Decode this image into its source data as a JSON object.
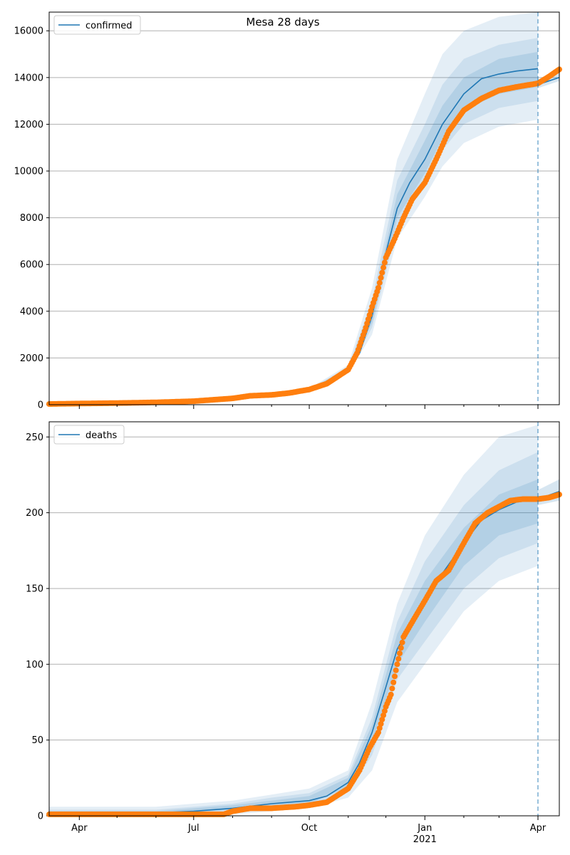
{
  "figure": {
    "title": "Mesa 28 days"
  },
  "x_axis": {
    "start": "2020-03-08",
    "end": "2021-04-18",
    "ticks": [
      {
        "date": "2020-04-01",
        "label": "Apr",
        "sublabel": ""
      },
      {
        "date": "2020-07-01",
        "label": "Jul",
        "sublabel": ""
      },
      {
        "date": "2020-10-01",
        "label": "Oct",
        "sublabel": ""
      },
      {
        "date": "2021-01-01",
        "label": "Jan",
        "sublabel": "2021"
      },
      {
        "date": "2021-04-01",
        "label": "Apr",
        "sublabel": ""
      }
    ],
    "minor_ticks": [
      "2020-05-01",
      "2020-06-01",
      "2020-08-01",
      "2020-09-01",
      "2020-11-01",
      "2020-12-01",
      "2021-02-01",
      "2021-03-01"
    ]
  },
  "forecast_date": "2021-04-01",
  "colors": {
    "model": "#1f77b4",
    "observed": "#ff7f0e",
    "band": "#1f77b4",
    "grid": "#b0b0b0"
  },
  "chart_data": [
    {
      "type": "line",
      "legend": "confirmed",
      "legend_position": "top-left",
      "grid": true,
      "ylim": [
        0,
        16800
      ],
      "y_ticks": [
        0,
        2000,
        4000,
        6000,
        8000,
        10000,
        12000,
        14000,
        16000
      ],
      "model_line": [
        [
          "2020-03-08",
          30
        ],
        [
          "2020-04-01",
          50
        ],
        [
          "2020-05-01",
          70
        ],
        [
          "2020-06-01",
          100
        ],
        [
          "2020-07-01",
          180
        ],
        [
          "2020-08-01",
          330
        ],
        [
          "2020-09-01",
          460
        ],
        [
          "2020-10-01",
          650
        ],
        [
          "2020-10-15",
          900
        ],
        [
          "2020-11-01",
          1500
        ],
        [
          "2020-11-10",
          2200
        ],
        [
          "2020-11-20",
          3800
        ],
        [
          "2020-12-01",
          6500
        ],
        [
          "2020-12-10",
          8400
        ],
        [
          "2020-12-20",
          9500
        ],
        [
          "2021-01-01",
          10500
        ],
        [
          "2021-01-15",
          12000
        ],
        [
          "2021-02-01",
          13300
        ],
        [
          "2021-02-15",
          13950
        ],
        [
          "2021-03-01",
          14150
        ],
        [
          "2021-03-15",
          14280
        ],
        [
          "2021-04-01",
          14380
        ]
      ],
      "bands": [
        {
          "level": "outer",
          "upper": [
            [
              "2020-10-01",
              700
            ],
            [
              "2020-11-01",
              1700
            ],
            [
              "2020-11-20",
              5000
            ],
            [
              "2020-12-10",
              10500
            ],
            [
              "2021-01-01",
              13300
            ],
            [
              "2021-01-15",
              15000
            ],
            [
              "2021-02-01",
              16000
            ],
            [
              "2021-03-01",
              16600
            ],
            [
              "2021-04-01",
              16800
            ]
          ],
          "lower": [
            [
              "2020-10-01",
              600
            ],
            [
              "2020-11-01",
              1350
            ],
            [
              "2020-11-20",
              3000
            ],
            [
              "2020-12-10",
              7100
            ],
            [
              "2021-01-01",
              8900
            ],
            [
              "2021-01-15",
              10200
            ],
            [
              "2021-02-01",
              11200
            ],
            [
              "2021-03-01",
              11900
            ],
            [
              "2021-04-01",
              12200
            ]
          ]
        },
        {
          "level": "middle",
          "upper": [
            [
              "2020-10-01",
              680
            ],
            [
              "2020-11-01",
              1600
            ],
            [
              "2020-11-20",
              4500
            ],
            [
              "2020-12-10",
              9600
            ],
            [
              "2021-01-01",
              12000
            ],
            [
              "2021-01-15",
              13700
            ],
            [
              "2021-02-01",
              14800
            ],
            [
              "2021-03-01",
              15400
            ],
            [
              "2021-04-01",
              15700
            ]
          ],
          "lower": [
            [
              "2020-10-01",
              620
            ],
            [
              "2020-11-01",
              1420
            ],
            [
              "2020-11-20",
              3300
            ],
            [
              "2020-12-10",
              7600
            ],
            [
              "2021-01-01",
              9500
            ],
            [
              "2021-01-15",
              10900
            ],
            [
              "2021-02-01",
              12000
            ],
            [
              "2021-03-01",
              12700
            ],
            [
              "2021-04-01",
              13000
            ]
          ]
        },
        {
          "level": "inner",
          "upper": [
            [
              "2020-10-01",
              660
            ],
            [
              "2020-11-01",
              1550
            ],
            [
              "2020-11-20",
              4200
            ],
            [
              "2020-12-10",
              9000
            ],
            [
              "2021-01-01",
              11300
            ],
            [
              "2021-01-15",
              12800
            ],
            [
              "2021-02-01",
              14000
            ],
            [
              "2021-03-01",
              14800
            ],
            [
              "2021-04-01",
              15100
            ]
          ],
          "lower": [
            [
              "2020-10-01",
              640
            ],
            [
              "2020-11-01",
              1460
            ],
            [
              "2020-11-20",
              3500
            ],
            [
              "2020-12-10",
              8000
            ],
            [
              "2021-01-01",
              9900
            ],
            [
              "2021-01-15",
              11400
            ],
            [
              "2021-02-01",
              12600
            ],
            [
              "2021-03-01",
              13300
            ],
            [
              "2021-04-01",
              13600
            ]
          ]
        }
      ],
      "post_line": [
        [
          "2021-04-01",
          13700
        ],
        [
          "2021-04-18",
          14000
        ]
      ],
      "post_band": {
        "upper": [
          [
            "2021-04-01",
            13900
          ],
          [
            "2021-04-18",
            14200
          ]
        ],
        "lower": [
          [
            "2021-04-01",
            13550
          ],
          [
            "2021-04-18",
            13850
          ]
        ]
      },
      "observed": [
        [
          "2020-03-08",
          30
        ],
        [
          "2020-04-01",
          50
        ],
        [
          "2020-05-01",
          70
        ],
        [
          "2020-06-01",
          100
        ],
        [
          "2020-07-01",
          150
        ],
        [
          "2020-08-01",
          270
        ],
        [
          "2020-08-15",
          380
        ],
        [
          "2020-09-01",
          420
        ],
        [
          "2020-09-15",
          500
        ],
        [
          "2020-10-01",
          650
        ],
        [
          "2020-10-15",
          900
        ],
        [
          "2020-11-01",
          1500
        ],
        [
          "2020-11-08",
          2200
        ],
        [
          "2020-11-15",
          3300
        ],
        [
          "2020-11-20",
          4200
        ],
        [
          "2020-11-25",
          5000
        ],
        [
          "2020-12-01",
          6300
        ],
        [
          "2020-12-08",
          7100
        ],
        [
          "2020-12-15",
          8000
        ],
        [
          "2020-12-22",
          8800
        ],
        [
          "2021-01-01",
          9500
        ],
        [
          "2021-01-10",
          10500
        ],
        [
          "2021-01-20",
          11700
        ],
        [
          "2021-02-01",
          12600
        ],
        [
          "2021-02-15",
          13100
        ],
        [
          "2021-03-01",
          13450
        ],
        [
          "2021-03-15",
          13600
        ],
        [
          "2021-04-01",
          13750
        ],
        [
          "2021-04-10",
          14050
        ],
        [
          "2021-04-18",
          14350
        ]
      ]
    },
    {
      "type": "line",
      "legend": "deaths",
      "legend_position": "top-left",
      "grid": true,
      "ylim": [
        0,
        260
      ],
      "y_ticks": [
        0,
        50,
        100,
        150,
        200,
        250
      ],
      "model_line": [
        [
          "2020-03-08",
          1
        ],
        [
          "2020-04-01",
          1
        ],
        [
          "2020-05-01",
          2
        ],
        [
          "2020-06-01",
          2
        ],
        [
          "2020-07-01",
          3
        ],
        [
          "2020-08-01",
          5
        ],
        [
          "2020-09-01",
          8
        ],
        [
          "2020-10-01",
          10
        ],
        [
          "2020-10-15",
          13
        ],
        [
          "2020-11-01",
          22
        ],
        [
          "2020-11-10",
          35
        ],
        [
          "2020-11-20",
          55
        ],
        [
          "2020-12-01",
          85
        ],
        [
          "2020-12-10",
          110
        ],
        [
          "2020-12-20",
          125
        ],
        [
          "2021-01-01",
          140
        ],
        [
          "2021-01-15",
          160
        ],
        [
          "2021-02-01",
          180
        ],
        [
          "2021-02-15",
          195
        ],
        [
          "2021-03-01",
          202
        ],
        [
          "2021-03-15",
          207
        ],
        [
          "2021-04-01",
          209
        ]
      ],
      "bands": [
        {
          "level": "outer",
          "upper": [
            [
              "2020-03-08",
              6
            ],
            [
              "2020-06-01",
              6
            ],
            [
              "2020-08-01",
              10
            ],
            [
              "2020-09-01",
              14
            ],
            [
              "2020-10-01",
              18
            ],
            [
              "2020-11-01",
              30
            ],
            [
              "2020-11-20",
              75
            ],
            [
              "2020-12-10",
              140
            ],
            [
              "2021-01-01",
              185
            ],
            [
              "2021-02-01",
              225
            ],
            [
              "2021-03-01",
              250
            ],
            [
              "2021-04-01",
              258
            ]
          ],
          "lower": [
            [
              "2020-03-08",
              0
            ],
            [
              "2020-06-01",
              0
            ],
            [
              "2020-08-01",
              1
            ],
            [
              "2020-09-01",
              3
            ],
            [
              "2020-10-01",
              5
            ],
            [
              "2020-11-01",
              12
            ],
            [
              "2020-11-20",
              30
            ],
            [
              "2020-12-10",
              75
            ],
            [
              "2021-01-01",
              100
            ],
            [
              "2021-02-01",
              135
            ],
            [
              "2021-03-01",
              155
            ],
            [
              "2021-04-01",
              165
            ]
          ]
        },
        {
          "level": "middle",
          "upper": [
            [
              "2020-03-08",
              4
            ],
            [
              "2020-06-01",
              4
            ],
            [
              "2020-08-01",
              8
            ],
            [
              "2020-09-01",
              12
            ],
            [
              "2020-10-01",
              15
            ],
            [
              "2020-11-01",
              27
            ],
            [
              "2020-11-20",
              65
            ],
            [
              "2020-12-10",
              128
            ],
            [
              "2021-01-01",
              168
            ],
            [
              "2021-02-01",
              205
            ],
            [
              "2021-03-01",
              228
            ],
            [
              "2021-04-01",
              240
            ]
          ],
          "lower": [
            [
              "2020-03-08",
              0
            ],
            [
              "2020-06-01",
              1
            ],
            [
              "2020-08-01",
              3
            ],
            [
              "2020-09-01",
              5
            ],
            [
              "2020-10-01",
              7
            ],
            [
              "2020-11-01",
              16
            ],
            [
              "2020-11-20",
              40
            ],
            [
              "2020-12-10",
              90
            ],
            [
              "2021-01-01",
              115
            ],
            [
              "2021-02-01",
              150
            ],
            [
              "2021-03-01",
              170
            ],
            [
              "2021-04-01",
              180
            ]
          ]
        },
        {
          "level": "inner",
          "upper": [
            [
              "2020-03-08",
              3
            ],
            [
              "2020-06-01",
              3
            ],
            [
              "2020-08-01",
              7
            ],
            [
              "2020-09-01",
              10
            ],
            [
              "2020-10-01",
              13
            ],
            [
              "2020-11-01",
              25
            ],
            [
              "2020-11-20",
              60
            ],
            [
              "2020-12-10",
              120
            ],
            [
              "2021-01-01",
              155
            ],
            [
              "2021-02-01",
              190
            ],
            [
              "2021-03-01",
              212
            ],
            [
              "2021-04-01",
              222
            ]
          ],
          "lower": [
            [
              "2020-03-08",
              0
            ],
            [
              "2020-06-01",
              1
            ],
            [
              "2020-08-01",
              4
            ],
            [
              "2020-09-01",
              6
            ],
            [
              "2020-10-01",
              8
            ],
            [
              "2020-11-01",
              19
            ],
            [
              "2020-11-20",
              48
            ],
            [
              "2020-12-10",
              100
            ],
            [
              "2021-01-01",
              128
            ],
            [
              "2021-02-01",
              165
            ],
            [
              "2021-03-01",
              185
            ],
            [
              "2021-04-01",
              193
            ]
          ]
        }
      ],
      "post_line": [
        [
          "2021-04-01",
          209
        ],
        [
          "2021-04-18",
          214
        ]
      ],
      "post_band": {
        "upper": [
          [
            "2021-04-01",
            215
          ],
          [
            "2021-04-18",
            222
          ]
        ],
        "lower": [
          [
            "2021-04-01",
            205
          ],
          [
            "2021-04-18",
            208
          ]
        ]
      },
      "observed": [
        [
          "2020-03-08",
          1
        ],
        [
          "2020-04-01",
          1
        ],
        [
          "2020-05-01",
          1
        ],
        [
          "2020-06-01",
          1
        ],
        [
          "2020-07-01",
          1
        ],
        [
          "2020-07-25",
          1
        ],
        [
          "2020-08-01",
          3
        ],
        [
          "2020-08-15",
          5
        ],
        [
          "2020-09-01",
          5
        ],
        [
          "2020-09-20",
          6
        ],
        [
          "2020-10-01",
          7
        ],
        [
          "2020-10-15",
          9
        ],
        [
          "2020-11-01",
          18
        ],
        [
          "2020-11-10",
          30
        ],
        [
          "2020-11-18",
          45
        ],
        [
          "2020-11-25",
          55
        ],
        [
          "2020-12-01",
          72
        ],
        [
          "2020-12-05",
          80
        ],
        [
          "2020-12-10",
          100
        ],
        [
          "2020-12-15",
          118
        ],
        [
          "2020-12-22",
          128
        ],
        [
          "2021-01-01",
          142
        ],
        [
          "2021-01-10",
          155
        ],
        [
          "2021-01-20",
          162
        ],
        [
          "2021-02-01",
          180
        ],
        [
          "2021-02-10",
          193
        ],
        [
          "2021-02-20",
          200
        ],
        [
          "2021-03-01",
          204
        ],
        [
          "2021-03-10",
          208
        ],
        [
          "2021-03-20",
          209
        ],
        [
          "2021-04-01",
          209
        ],
        [
          "2021-04-10",
          210
        ],
        [
          "2021-04-18",
          212
        ]
      ]
    }
  ]
}
